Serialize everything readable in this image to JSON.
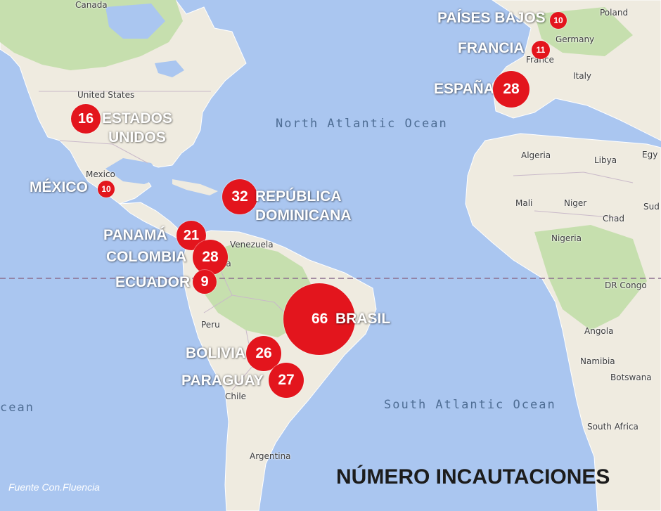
{
  "map_labels": {
    "canada": "Canada",
    "united_states": "United States",
    "mexico": "Mexico",
    "venezuela": "Venezuela",
    "peru": "Peru",
    "chile": "Chile",
    "argentina": "Argentina",
    "poland": "Poland",
    "germany": "Germany",
    "france": "France",
    "italy": "Italy",
    "algeria": "Algeria",
    "libya": "Libya",
    "egypt": "Egy",
    "mali": "Mali",
    "niger": "Niger",
    "chad": "Chad",
    "sudan": "Sud",
    "nigeria": "Nigeria",
    "dr_congo": "DR Congo",
    "angola": "Angola",
    "namibia": "Namibia",
    "botswana": "Botswana",
    "south_africa": "South Africa",
    "bolivia_map": "ia",
    "north_atlantic": "North Atlantic Ocean",
    "south_atlantic": "South Atlantic Ocean",
    "pacific": "cean"
  },
  "seizures": {
    "paises_bajos": {
      "label": "PAÍSES BAJOS",
      "value": 10
    },
    "francia": {
      "label": "FRANCIA",
      "value": 11
    },
    "espana": {
      "label": "ESPAÑA",
      "value": 28
    },
    "estados_unidos": {
      "label1": "ESTADOS",
      "label2": "UNIDOS",
      "value": 16
    },
    "mexico": {
      "label": "MÉXICO",
      "value": 10
    },
    "republica_dominicana": {
      "label1": "REPÚBLICA",
      "label2": "DOMINICANA",
      "value": 32
    },
    "panama": {
      "label": "PANAMÁ",
      "value": 21
    },
    "colombia": {
      "label": "COLOMBIA",
      "value": 28
    },
    "ecuador": {
      "label": "ECUADOR",
      "value": 9
    },
    "brasil": {
      "label": "BRASIL",
      "value": 66
    },
    "bolivia": {
      "label": "BOLIVIA",
      "value": 26
    },
    "paraguay": {
      "label": "PARAGUAY",
      "value": 27
    }
  },
  "title": "NÚMERO INCAUTACIONES",
  "source": "Fuente Con.Fluencia",
  "colors": {
    "ocean": "#aac6f0",
    "land": "#efebe0",
    "forest": "#c6dfae",
    "bubble": "#e3151d"
  }
}
